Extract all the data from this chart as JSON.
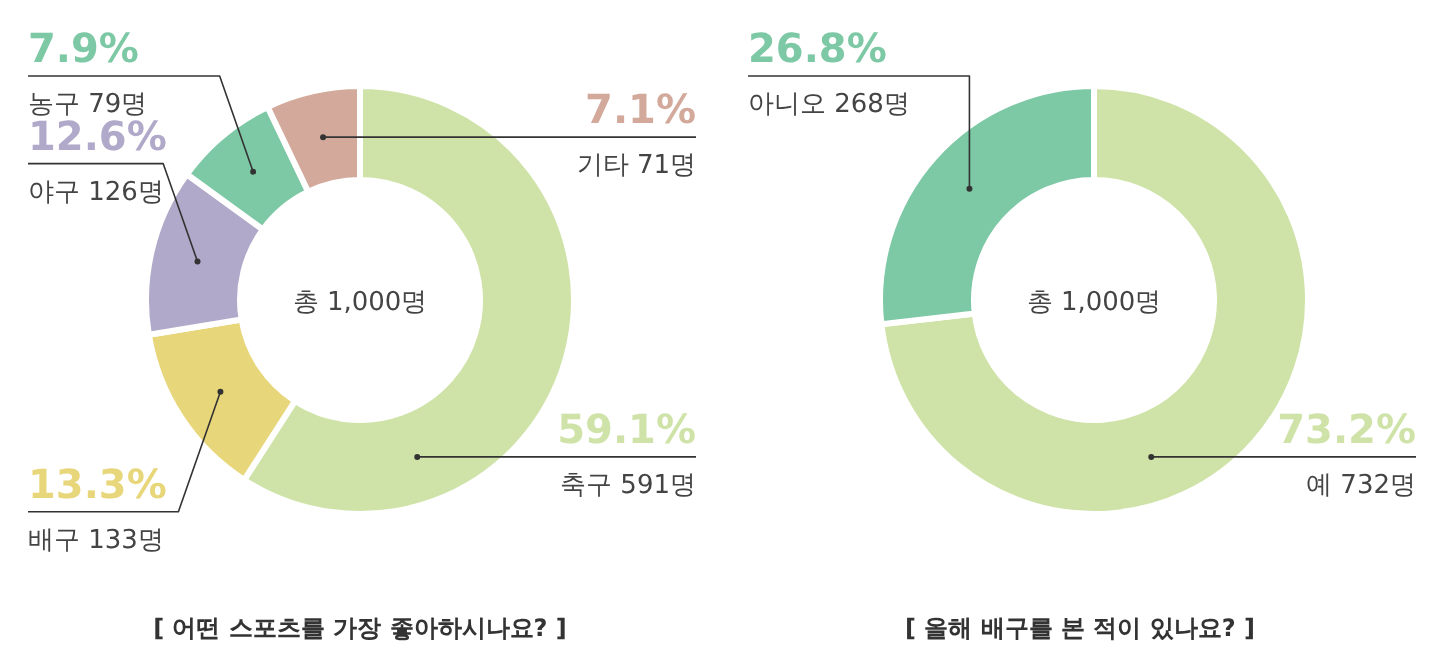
{
  "chart_data": [
    {
      "type": "donut",
      "title": "[ 어떤 스포츠를 가장 좋아하시나요? ]",
      "categories": [
        "축구 591명",
        "배구 133명",
        "야구 126명",
        "농구 79명",
        "기타 71명"
      ],
      "values": [
        59.1,
        13.3,
        12.6,
        7.9,
        7.1
      ],
      "colors": [
        "#cfe3a8",
        "#e8d67a",
        "#b1a9c9",
        "#7dc8a5",
        "#d2a99a"
      ],
      "value_labels": [
        "59.1%",
        "13.3%",
        "12.6%",
        "7.9%",
        "7.1%"
      ],
      "annotations": [
        "총 1,000명"
      ]
    },
    {
      "type": "donut",
      "title": "[ 올해 배구를 본 적이 있나요? ]",
      "categories": [
        "예 732명",
        "아니오 268명"
      ],
      "values": [
        73.2,
        26.8
      ],
      "colors": [
        "#cfe3a8",
        "#7dc8a5"
      ],
      "value_labels": [
        "73.2%",
        "26.8%"
      ],
      "annotations": [
        "총 1,000명"
      ]
    }
  ]
}
